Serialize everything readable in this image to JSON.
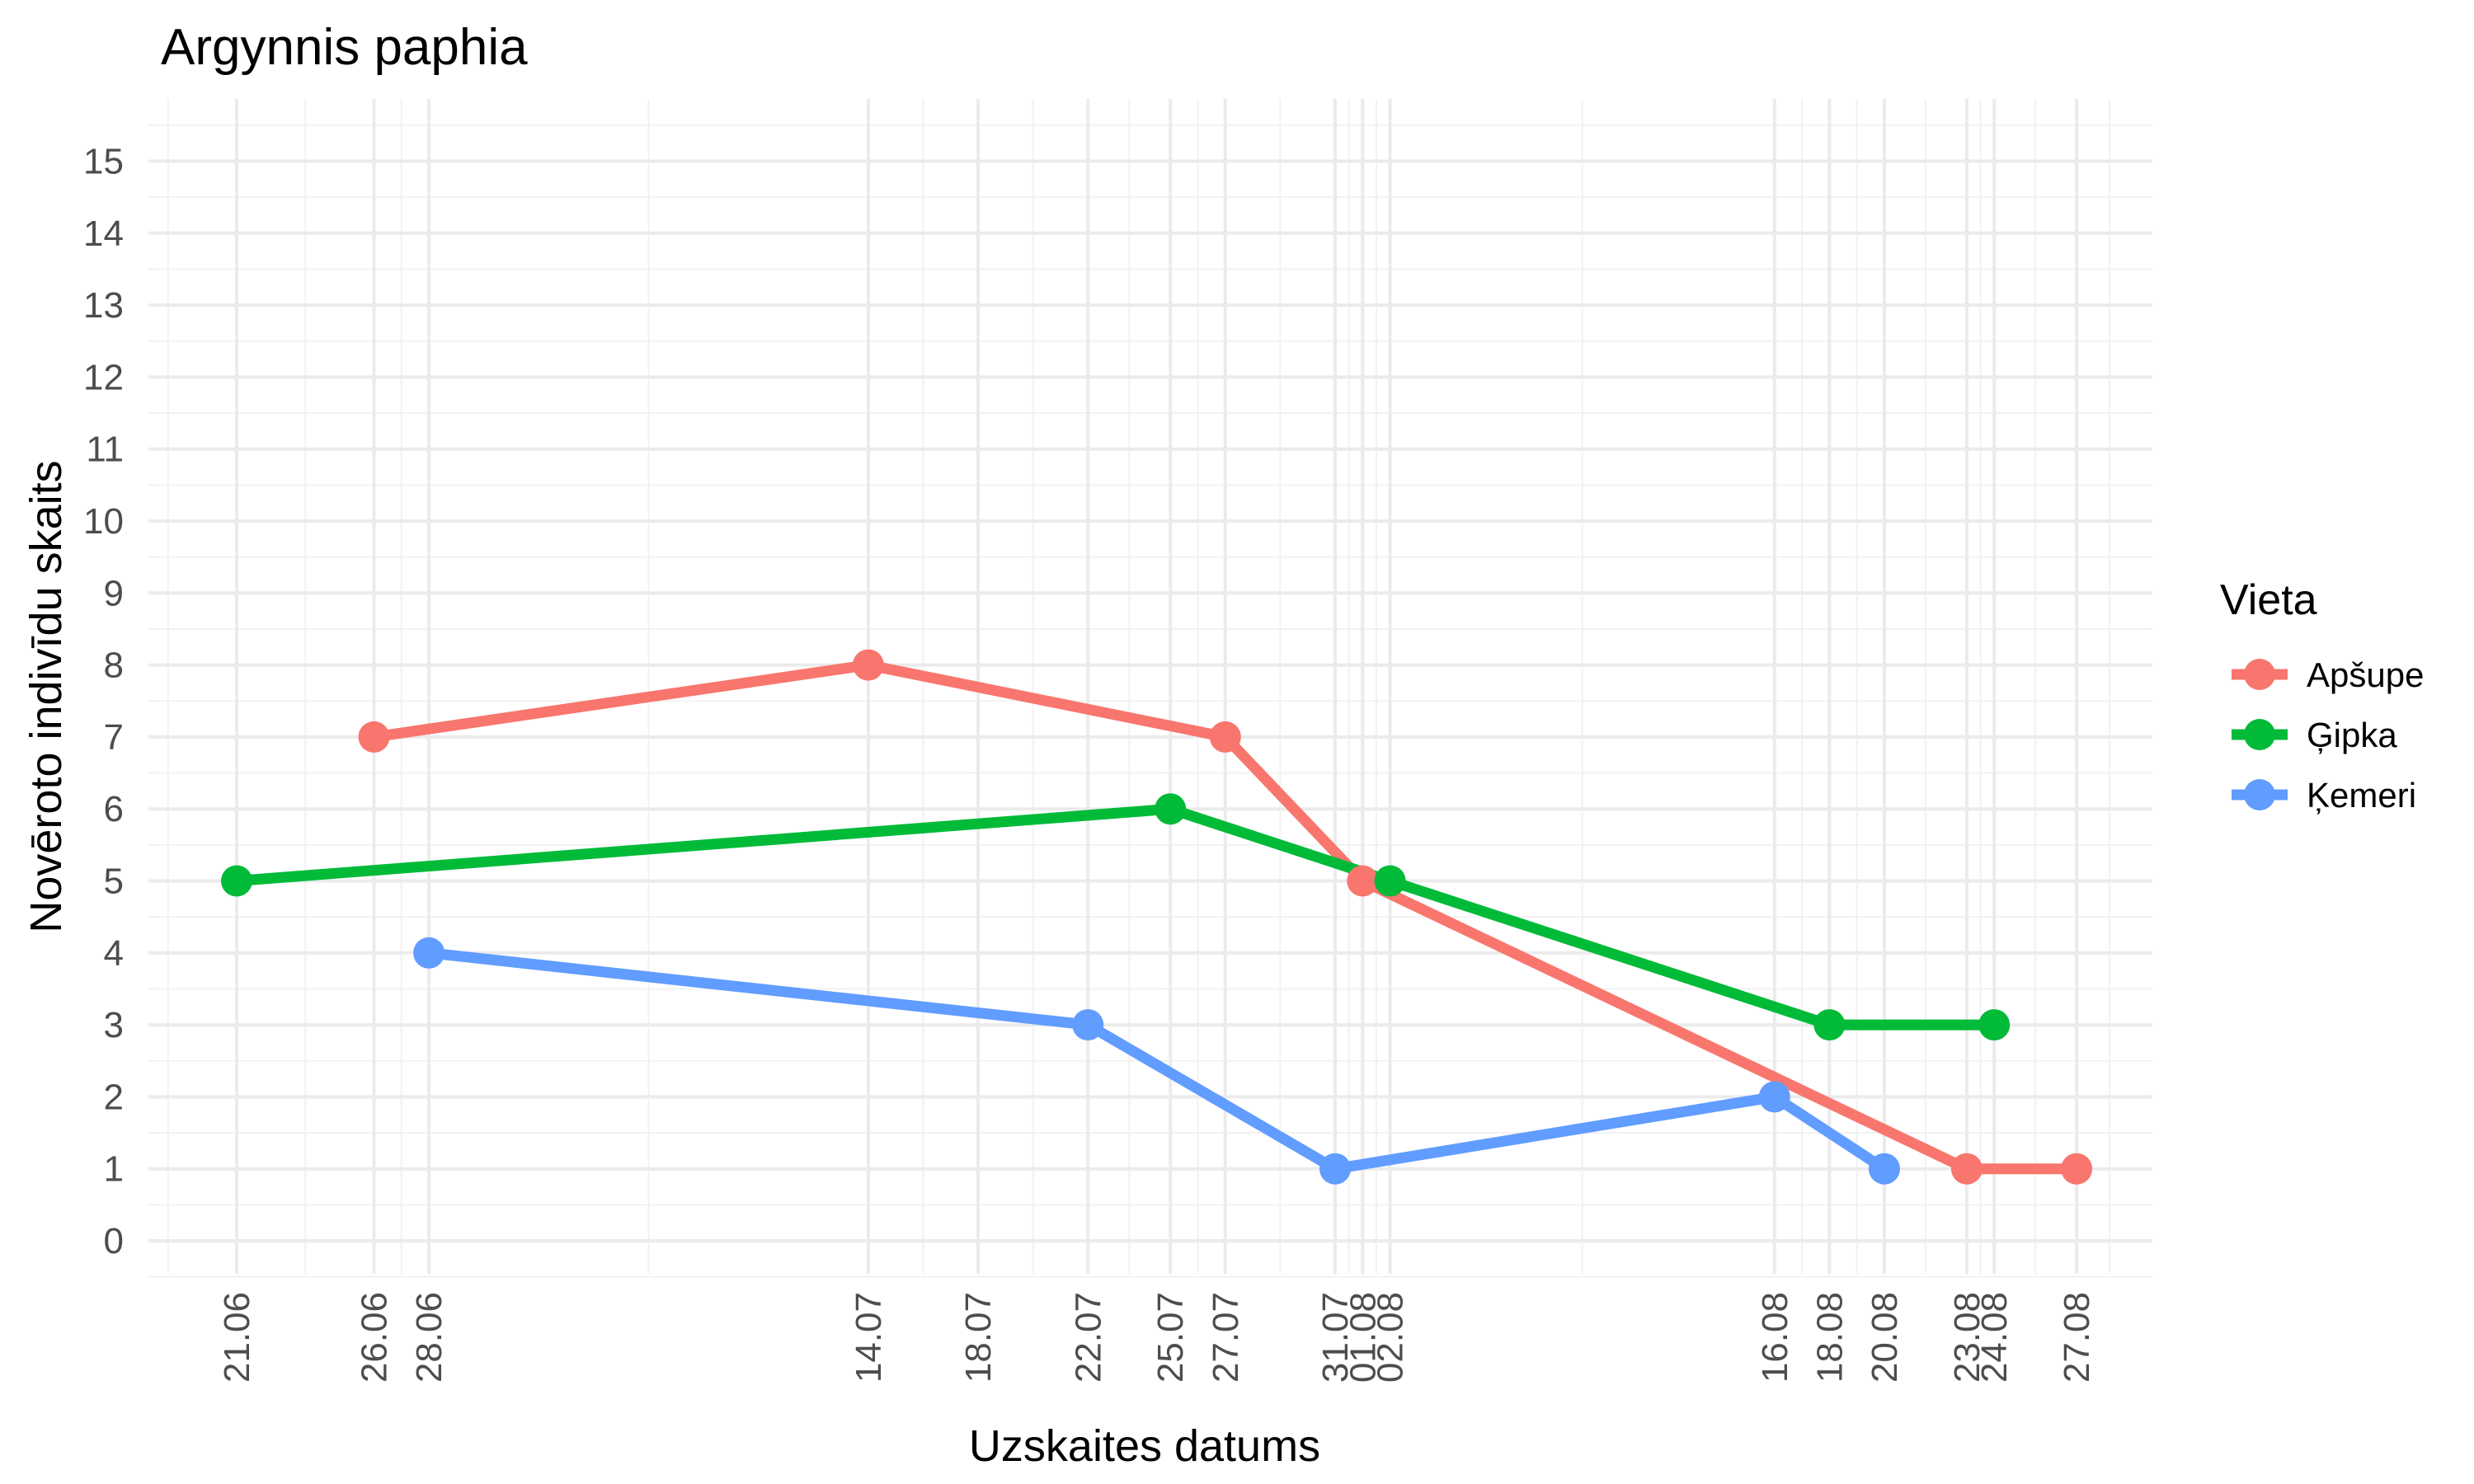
{
  "chart_data": {
    "type": "line",
    "title": "Argynnis paphia",
    "xlabel": "Uzskaites datums",
    "ylabel": "Novēroto indivīdu skaits",
    "x_format": "DD.MM",
    "x_ticks": [
      "21.06",
      "26.06",
      "28.06",
      "14.07",
      "18.07",
      "22.07",
      "25.07",
      "27.07",
      "31.07",
      "01.08",
      "02.08",
      "16.08",
      "18.08",
      "20.08",
      "23.08",
      "24.08",
      "27.08"
    ],
    "ylim": [
      0,
      15
    ],
    "y_ticks": [
      0,
      1,
      2,
      3,
      4,
      5,
      6,
      7,
      8,
      9,
      10,
      11,
      12,
      13,
      14,
      15
    ],
    "grid": true,
    "legend_title": "Vieta",
    "legend_position": "right",
    "series": [
      {
        "name": "Apšupe",
        "color": "#F8766D",
        "points": [
          {
            "x": "26.06",
            "y": 7
          },
          {
            "x": "14.07",
            "y": 8
          },
          {
            "x": "27.07",
            "y": 7
          },
          {
            "x": "01.08",
            "y": 5
          },
          {
            "x": "23.08",
            "y": 1
          },
          {
            "x": "27.08",
            "y": 1
          }
        ]
      },
      {
        "name": "Ģipka",
        "color": "#00BA38",
        "points": [
          {
            "x": "21.06",
            "y": 5
          },
          {
            "x": "25.07",
            "y": 6
          },
          {
            "x": "02.08",
            "y": 5
          },
          {
            "x": "18.08",
            "y": 3
          },
          {
            "x": "24.08",
            "y": 3
          }
        ]
      },
      {
        "name": "Ķemeri",
        "color": "#619CFF",
        "points": [
          {
            "x": "28.06",
            "y": 4
          },
          {
            "x": "22.07",
            "y": 3
          },
          {
            "x": "31.07",
            "y": 1
          },
          {
            "x": "16.08",
            "y": 2
          },
          {
            "x": "20.08",
            "y": 1
          }
        ]
      }
    ]
  }
}
